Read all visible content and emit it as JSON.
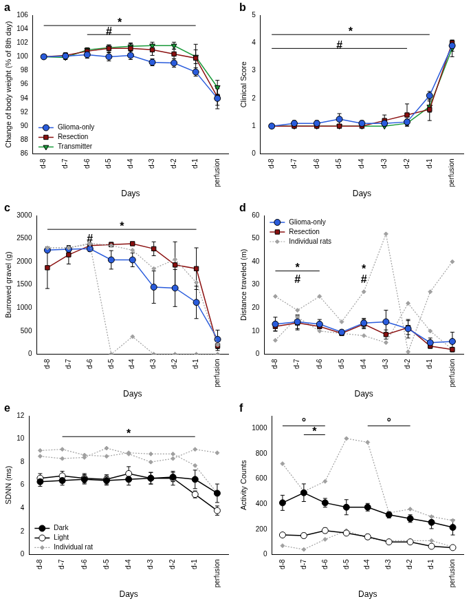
{
  "chart_data": [
    {
      "type": "line",
      "title": "a",
      "x_label": "Days",
      "y_label": "Change of body weight (% of 8th day)",
      "categories": [
        "d-8",
        "d-7",
        "d-6",
        "d-5",
        "d-4",
        "d-3",
        "d-2",
        "d-1",
        "perfusion"
      ],
      "ylim": [
        86,
        106
      ],
      "yticks": [
        86,
        88,
        90,
        92,
        94,
        96,
        98,
        100,
        102,
        104,
        106
      ],
      "grid": false,
      "legend": "lower left",
      "series": [
        {
          "name": "Glioma-only",
          "color": "#2a5cdc",
          "marker": "circle",
          "line_style": "solid",
          "values": [
            100,
            100.1,
            100.3,
            100,
            100.2,
            99.2,
            99.1,
            97.8,
            94
          ],
          "errors": [
            0.2,
            0.4,
            0.5,
            0.6,
            0.6,
            0.5,
            0.6,
            0.6,
            1.5
          ]
        },
        {
          "name": "Resection",
          "color": "#8b1010",
          "marker": "square",
          "line_style": "solid",
          "values": [
            100,
            100.2,
            100.8,
            101.2,
            101.2,
            101,
            100.4,
            99.8,
            94.2
          ],
          "errors": [
            0.2,
            0.4,
            0.4,
            0.5,
            0.7,
            0.8,
            0.7,
            2,
            1.2
          ]
        },
        {
          "name": "Transmitter",
          "color": "#1a9a3a",
          "marker": "triangle-down",
          "line_style": "solid",
          "values": [
            100,
            99.9,
            101,
            101.3,
            101.5,
            101.6,
            101.6,
            100,
            95.6
          ],
          "errors": [
            0.2,
            0.3,
            0.3,
            0.4,
            0.5,
            0.5,
            0.5,
            1,
            1
          ]
        }
      ],
      "annotations": [
        {
          "label": "*",
          "from": "d-8",
          "to": "d-1",
          "y": 104.5
        },
        {
          "label": "#",
          "from": "d-6",
          "to": "d-4",
          "y": 103.2
        }
      ]
    },
    {
      "type": "line",
      "title": "b",
      "x_label": "Days",
      "y_label": "Clinical Score",
      "categories": [
        "d-8",
        "d-7",
        "d-6",
        "d-5",
        "d-4",
        "d-3",
        "d-2",
        "d-1",
        "perfusion"
      ],
      "ylim": [
        0,
        5
      ],
      "yticks": [
        0,
        1,
        2,
        3,
        4,
        5
      ],
      "grid": false,
      "series": [
        {
          "name": "Glioma-only",
          "color": "#2a5cdc",
          "marker": "circle",
          "line_style": "solid",
          "values": [
            1,
            1.1,
            1.1,
            1.25,
            1.1,
            1.1,
            1.15,
            2.1,
            3.9
          ],
          "errors": [
            0,
            0.1,
            0.1,
            0.2,
            0.1,
            0.1,
            0.1,
            0.15,
            0.2
          ]
        },
        {
          "name": "Resection",
          "color": "#8b1010",
          "marker": "square",
          "line_style": "solid",
          "values": [
            1,
            1,
            1,
            1,
            1,
            1.2,
            1.4,
            1.6,
            4
          ],
          "errors": [
            0,
            0,
            0,
            0,
            0,
            0.2,
            0.4,
            0.4,
            0.05
          ]
        },
        {
          "name": "Transmitter",
          "color": "#1a9a3a",
          "marker": "triangle-down",
          "line_style": "solid",
          "values": [
            1,
            1,
            1,
            1,
            1,
            1,
            1.1,
            1.7,
            3.8
          ],
          "errors": [
            0,
            0,
            0,
            0,
            0,
            0,
            0.1,
            0.2,
            0.3
          ]
        }
      ],
      "annotations": [
        {
          "label": "*",
          "from": "d-8",
          "to": "d-1",
          "y": 4.3
        },
        {
          "label": "#",
          "from": "d-8",
          "to": "d-2",
          "y": 3.8
        }
      ]
    },
    {
      "type": "line",
      "title": "c",
      "x_label": "Days",
      "y_label": "Burrowed gravel (g)",
      "categories": [
        "d-8",
        "d-7",
        "d-6",
        "d-5",
        "d-4",
        "d-3",
        "d-2",
        "d-1",
        "perfusion"
      ],
      "ylim": [
        0,
        3000
      ],
      "yticks": [
        0,
        500,
        1000,
        1500,
        2000,
        2500,
        3000
      ],
      "grid": false,
      "series": [
        {
          "name": "Individual rats",
          "color": "#a0a0a0",
          "marker": "diamond",
          "line_style": "dotted",
          "values": [
            2300,
            2300,
            2400,
            2350,
            2250,
            1850,
            2050,
            1550,
            200
          ]
        },
        {
          "name": "Individual rats",
          "color": "#a0a0a0",
          "marker": "diamond",
          "line_style": "dotted",
          "values": [
            2300,
            2300,
            2380,
            0,
            380,
            0,
            0,
            0,
            0
          ]
        },
        {
          "name": "Glioma-only",
          "color": "#2a5cdc",
          "marker": "circle",
          "line_style": "solid",
          "values": [
            2250,
            2270,
            2280,
            2040,
            2040,
            1450,
            1430,
            1120,
            320
          ],
          "errors": [
            50,
            60,
            60,
            200,
            150,
            350,
            400,
            350,
            200
          ]
        },
        {
          "name": "Resection",
          "color": "#8b1010",
          "marker": "square",
          "line_style": "solid",
          "values": [
            1870,
            2150,
            2350,
            2370,
            2390,
            2280,
            1930,
            1850,
            180
          ],
          "errors": [
            450,
            200,
            50,
            50,
            30,
            150,
            500,
            450,
            100
          ]
        }
      ],
      "annotations": [
        {
          "label": "*",
          "from": "d-8",
          "to": "d-1",
          "y": 2700
        },
        {
          "label": "#",
          "from": "d-6",
          "to": "d-6",
          "y": 2480
        }
      ]
    },
    {
      "type": "line",
      "title": "d",
      "x_label": "Days",
      "y_label": "Distance traveled (m)",
      "categories": [
        "d-8",
        "d-7",
        "d-6",
        "d-5",
        "d-4",
        "d-3",
        "d-2",
        "d-1",
        "perfusion"
      ],
      "ylim": [
        0,
        60
      ],
      "yticks": [
        0,
        10,
        20,
        30,
        40,
        50,
        60
      ],
      "grid": false,
      "legend": "upper left",
      "series": [
        {
          "name": "Glioma-only",
          "color": "#2a5cdc",
          "marker": "circle",
          "line_style": "solid",
          "values": [
            13,
            14,
            13,
            9.5,
            13.5,
            14,
            11,
            5,
            5.5
          ],
          "errors": [
            3,
            3,
            2,
            1,
            2,
            5,
            4,
            2,
            4
          ]
        },
        {
          "name": "Resection",
          "color": "#8b1010",
          "marker": "square",
          "line_style": "solid",
          "values": [
            12,
            13.5,
            12,
            9,
            13,
            8.5,
            11.5,
            3.5,
            2
          ],
          "errors": [
            2,
            3,
            1,
            1,
            2,
            2,
            3,
            1,
            1
          ]
        },
        {
          "name": "Individual rats",
          "color": "#a0a0a0",
          "marker": "diamond",
          "line_style": "dotted",
          "values": [
            25,
            19,
            25,
            14,
            27,
            52,
            1,
            27,
            40
          ]
        },
        {
          "name": "Individual rats",
          "color": "#a0a0a0",
          "marker": "diamond",
          "line_style": "dotted",
          "values": [
            6,
            16,
            10,
            9,
            8,
            5,
            22,
            10,
            2
          ]
        }
      ],
      "annotations": [
        {
          "label": "*",
          "from": "d-8",
          "to": "d-6",
          "y": 36
        },
        {
          "label": "#",
          "from": "d-7",
          "to": "d-7",
          "y": 32
        },
        {
          "label": "*",
          "from": "d-4",
          "to": "d-4",
          "y": 36.5
        },
        {
          "label": "#",
          "from": "d-4",
          "to": "d-4",
          "y": 32
        }
      ]
    },
    {
      "type": "line",
      "title": "e",
      "x_label": "Days",
      "y_label": "SDNN (ms)",
      "categories": [
        "d-8",
        "d-7",
        "d-6",
        "d-5",
        "d-4",
        "d-3",
        "d-2",
        "d-1",
        "perfusion"
      ],
      "ylim": [
        0,
        12
      ],
      "yticks": [
        0,
        2,
        4,
        6,
        8,
        10,
        12
      ],
      "grid": false,
      "legend": "lower left",
      "series": [
        {
          "name": "Dark",
          "color": "#000000",
          "marker": "circle",
          "line_style": "solid",
          "values": [
            6.3,
            6.4,
            6.5,
            6.4,
            6.5,
            6.6,
            6.7,
            6.5,
            5.3
          ],
          "errors": [
            0.4,
            0.4,
            0.4,
            0.4,
            0.5,
            0.5,
            0.4,
            0.8,
            0.8
          ]
        },
        {
          "name": "Light",
          "color": "#000000",
          "marker": "circle-open",
          "line_style": "solid",
          "values": [
            6.6,
            6.8,
            6.6,
            6.5,
            7.0,
            6.6,
            6.6,
            5.2,
            3.8
          ],
          "errors": [
            0.4,
            0.4,
            0.4,
            0.4,
            0.6,
            0.5,
            0.6,
            0.3,
            0.4
          ]
        },
        {
          "name": "Individual rat",
          "color": "#a0a0a0",
          "marker": "diamond",
          "line_style": "dotted",
          "values": [
            8.5,
            8.3,
            8.4,
            9.2,
            8.7,
            8.0,
            8.3,
            9.1,
            8.8
          ]
        },
        {
          "name": "Individual rat",
          "color": "#a0a0a0",
          "marker": "diamond",
          "line_style": "dotted",
          "values": [
            9.0,
            9.1,
            8.6,
            8.5,
            8.8,
            8.7,
            8.7,
            7.7,
            5.3
          ]
        }
      ],
      "annotations": [
        {
          "label": "*",
          "from": "d-7",
          "to": "d-1",
          "y": 10.2
        }
      ]
    },
    {
      "type": "line",
      "title": "f",
      "x_label": "Days",
      "y_label": "Activity Counts",
      "categories": [
        "d-8",
        "d-7",
        "d-6",
        "d-5",
        "d-4",
        "d-3",
        "d-2",
        "d-1",
        "perfusion"
      ],
      "ylim": [
        0,
        1100
      ],
      "yticks": [
        0,
        200,
        400,
        600,
        800,
        1000
      ],
      "grid": false,
      "series": [
        {
          "name": "Dark",
          "color": "#000000",
          "marker": "circle",
          "line_style": "solid",
          "values": [
            410,
            490,
            410,
            375,
            375,
            315,
            285,
            255,
            215
          ],
          "errors": [
            60,
            70,
            35,
            60,
            30,
            25,
            30,
            50,
            60
          ]
        },
        {
          "name": "Light",
          "color": "#000000",
          "marker": "circle-open",
          "line_style": "solid",
          "values": [
            155,
            150,
            190,
            170,
            140,
            100,
            100,
            65,
            55
          ],
          "errors": [
            15,
            20,
            20,
            15,
            20,
            10,
            10,
            10,
            10
          ]
        },
        {
          "name": "Individual rat",
          "color": "#a0a0a0",
          "marker": "diamond",
          "line_style": "dotted",
          "values": [
            720,
            500,
            580,
            920,
            890,
            330,
            360,
            300,
            270
          ]
        },
        {
          "name": "Individual rat",
          "color": "#a0a0a0",
          "marker": "diamond",
          "line_style": "dotted",
          "values": [
            70,
            40,
            120,
            190,
            130,
            110,
            110,
            110,
            60
          ]
        }
      ],
      "annotations": [
        {
          "label": "°",
          "from": "d-8",
          "to": "d-6",
          "y": 1020
        },
        {
          "label": "*",
          "from": "d-7",
          "to": "d-6",
          "y": 950
        },
        {
          "label": "°",
          "from": "d-4",
          "to": "d-2",
          "y": 1020
        }
      ]
    }
  ]
}
